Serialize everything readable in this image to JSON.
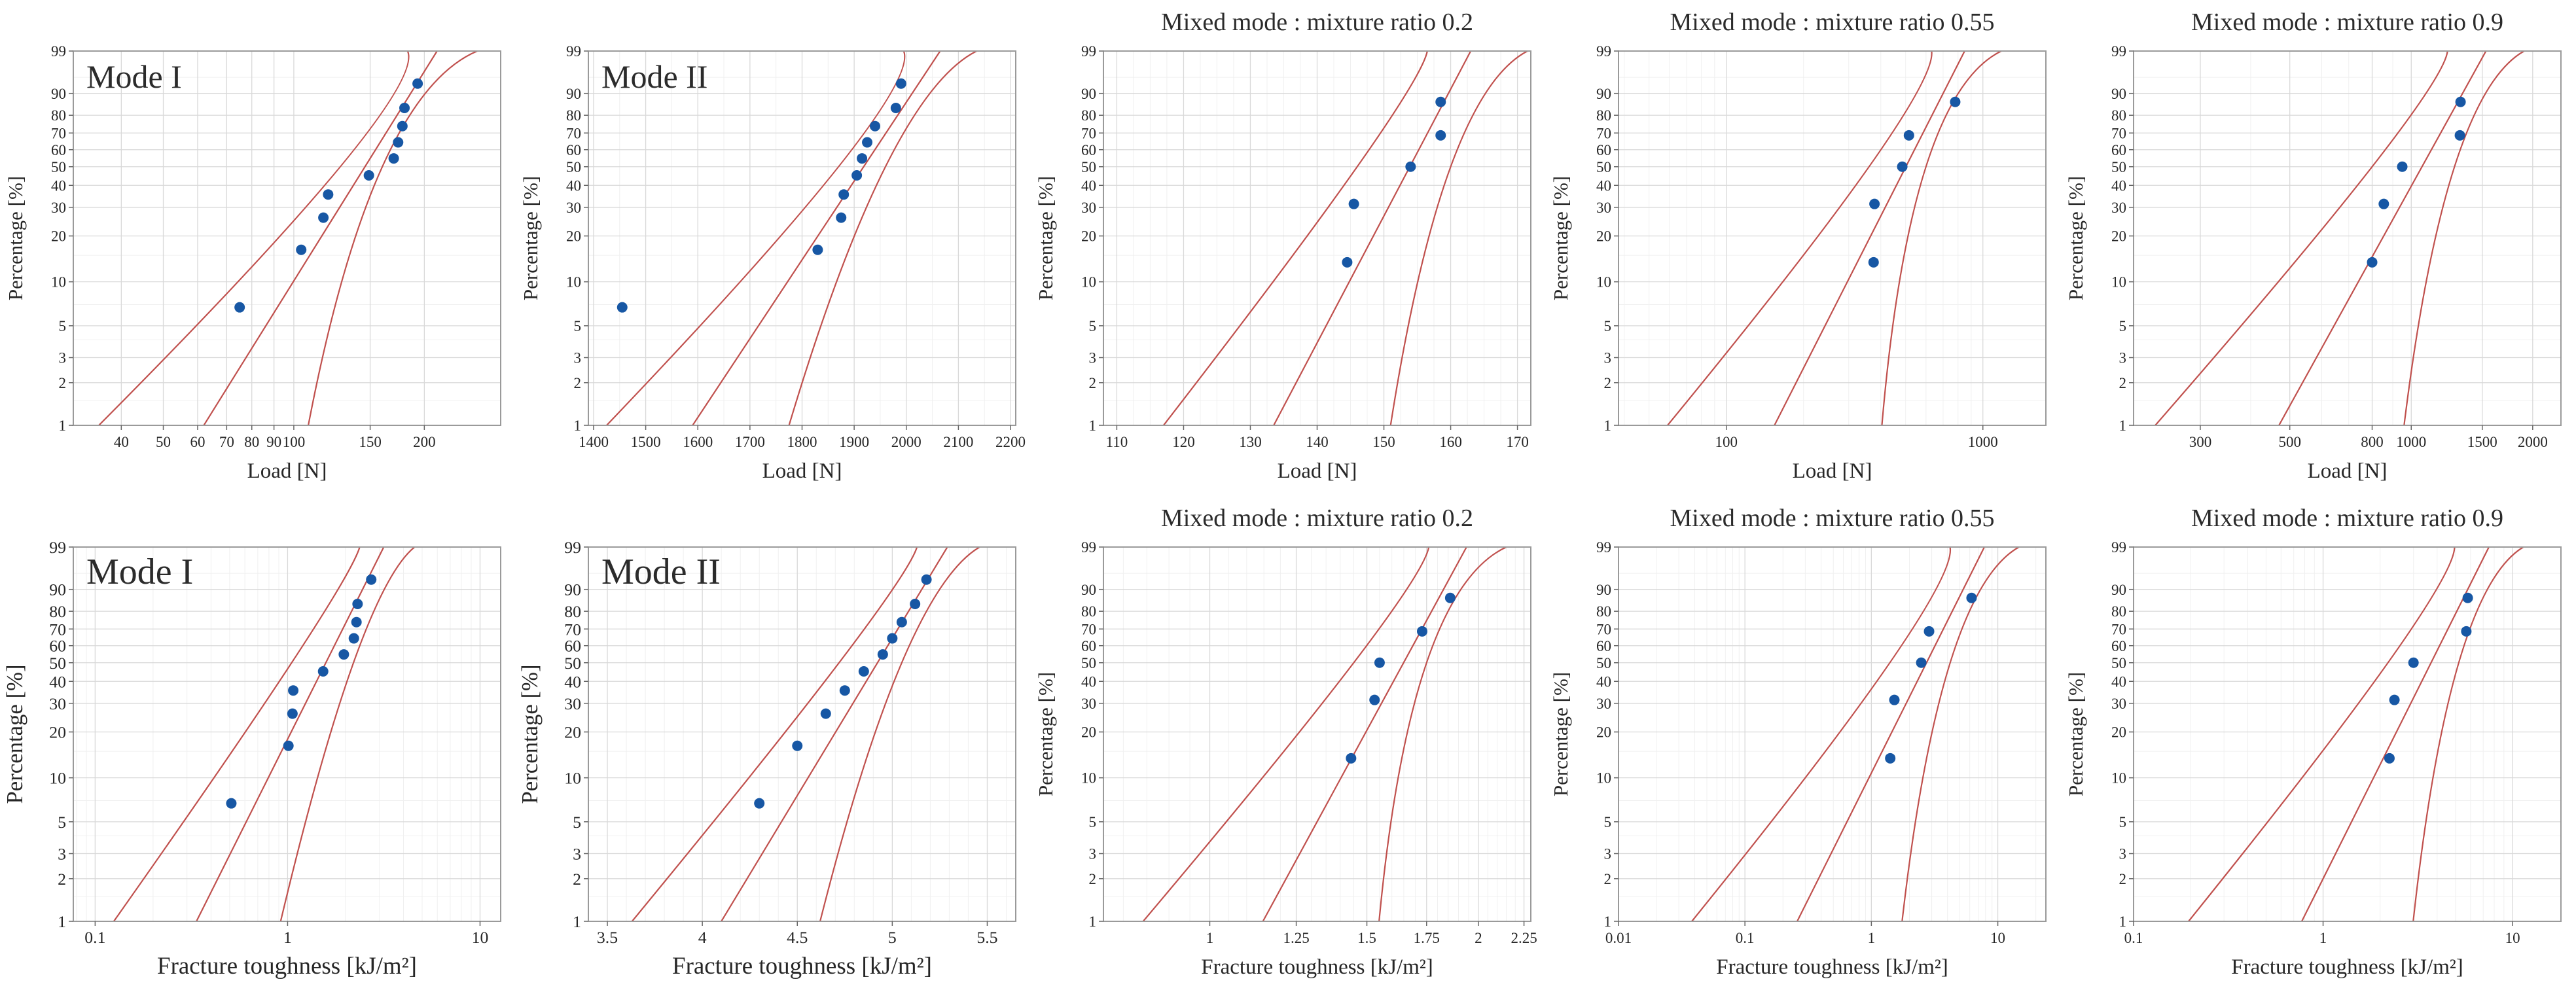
{
  "figure": {
    "background": "#ffffff",
    "rows": 2,
    "cols": 5
  },
  "colors": {
    "point": "#1757a4",
    "fit_line": "#c0504d",
    "grid_major": "#d9d9d9",
    "grid_minor": "#f0f0f0",
    "axis_box": "#9a9a9a",
    "tick": "#666666",
    "text": "#262626"
  },
  "y_axis": {
    "label": "Percentage [%]",
    "scale": "weibull",
    "range": [
      1,
      99
    ],
    "ticks": [
      1,
      2,
      3,
      5,
      10,
      20,
      30,
      40,
      50,
      60,
      70,
      80,
      90,
      99
    ],
    "minor": [
      1.5,
      4,
      7,
      15,
      95
    ]
  },
  "chart_data": [
    {
      "type": "scatter",
      "title": "Mode I",
      "title_position": "inside",
      "xlabel": "Load [N]",
      "ylabel": "Percentage [%]",
      "x_scale": "log",
      "x_range": [
        31,
        300
      ],
      "x_ticks": [
        40,
        50,
        60,
        70,
        80,
        90,
        100,
        150,
        200
      ],
      "x_tick_labels": [
        "40",
        "50",
        "60",
        "70",
        "80",
        "90",
        "100",
        "150",
        "200"
      ],
      "x_minor": "log",
      "font_scale": 1,
      "points": {
        "percent": [
          6.7,
          16.3,
          26.0,
          35.6,
          45.2,
          54.8,
          64.4,
          74.0,
          83.7,
          93.3
        ],
        "x": [
          75,
          104,
          117,
          120,
          149,
          170,
          174,
          178,
          180,
          193
        ]
      },
      "fit_line": {
        "x_at_p1": 62,
        "x_at_p99": 214
      },
      "bounds": {
        "p_anchors": [
          1,
          50,
          99
        ],
        "left_x": [
          35.5,
          128,
          183
        ],
        "right_x": [
          108,
          160,
          265
        ]
      }
    },
    {
      "type": "scatter",
      "title": "Mode II",
      "title_position": "inside",
      "xlabel": "Load [N]",
      "ylabel": "Percentage [%]",
      "x_scale": "linear",
      "x_range": [
        1390,
        2210
      ],
      "x_ticks": [
        1400,
        1500,
        1600,
        1700,
        1800,
        1900,
        2000,
        2100,
        2200
      ],
      "x_tick_labels": [
        "1400",
        "1500",
        "1600",
        "1700",
        "1800",
        "1900",
        "2000",
        "2100",
        "2200"
      ],
      "x_minor": 50,
      "font_scale": 1,
      "points": {
        "percent": [
          6.7,
          16.3,
          26.0,
          35.6,
          45.2,
          54.8,
          64.4,
          74.0,
          83.7,
          93.3
        ],
        "x": [
          1455,
          1830,
          1875,
          1880,
          1905,
          1915,
          1925,
          1940,
          1980,
          1990
        ]
      },
      "fit_line": {
        "x_at_p1": 1590,
        "x_at_p99": 2065
      },
      "bounds": {
        "p_anchors": [
          1,
          50,
          99
        ],
        "left_x": [
          1425,
          1870,
          1995
        ],
        "right_x": [
          1775,
          1960,
          2135
        ]
      }
    },
    {
      "type": "scatter",
      "title": "Mixed mode : mixture ratio 0.2",
      "title_position": "above",
      "xlabel": "Load [N]",
      "ylabel": "Percentage [%]",
      "x_scale": "linear",
      "x_range": [
        108,
        172
      ],
      "x_ticks": [
        110,
        120,
        130,
        140,
        150,
        160,
        170
      ],
      "x_tick_labels": [
        "110",
        "120",
        "130",
        "140",
        "150",
        "160",
        "170"
      ],
      "x_minor": 2.5,
      "font_scale": 1,
      "points": {
        "percent": [
          13.5,
          31.4,
          50.0,
          68.6,
          86.5
        ],
        "x": [
          144.5,
          145.5,
          154,
          158.5,
          158.5
        ]
      },
      "fit_line": {
        "x_at_p1": 133.5,
        "x_at_p99": 163
      },
      "bounds": {
        "p_anchors": [
          1,
          50,
          99
        ],
        "left_x": [
          117,
          146,
          156.5
        ],
        "right_x": [
          151,
          160,
          171.5
        ]
      }
    },
    {
      "type": "scatter",
      "title": "Mixed mode : mixture ratio 0.55",
      "title_position": "above",
      "xlabel": "Load [N]",
      "ylabel": "Percentage [%]",
      "x_scale": "log",
      "x_range": [
        38,
        1760
      ],
      "x_ticks": [
        100,
        1000
      ],
      "x_tick_labels": [
        "100",
        "1000"
      ],
      "x_minor": "log",
      "font_scale": 1,
      "points": {
        "percent": [
          13.5,
          31.4,
          50.0,
          68.6,
          86.5
        ],
        "x": [
          375,
          378,
          485,
          515,
          780
        ]
      },
      "fit_line": {
        "x_at_p1": 154,
        "x_at_p99": 849
      },
      "bounds": {
        "p_anchors": [
          1,
          50,
          99
        ],
        "left_x": [
          59,
          360,
          631
        ],
        "right_x": [
          404,
          600,
          1180
        ]
      }
    },
    {
      "type": "scatter",
      "title": "Mixed mode : mixture ratio 0.9",
      "title_position": "above",
      "xlabel": "Load [N]",
      "ylabel": "Percentage [%]",
      "x_scale": "log",
      "x_range": [
        205,
        2350
      ],
      "x_ticks": [
        300,
        500,
        800,
        1000,
        1500,
        2000
      ],
      "x_tick_labels": [
        "300",
        "500",
        "800",
        "1000",
        "1500",
        "2000"
      ],
      "x_minor": "log",
      "font_scale": 1,
      "points": {
        "percent": [
          13.5,
          31.4,
          50.0,
          68.6,
          86.5
        ],
        "x": [
          800,
          855,
          950,
          1320,
          1325
        ]
      },
      "fit_line": {
        "x_at_p1": 470,
        "x_at_p99": 1532
      },
      "bounds": {
        "p_anchors": [
          1,
          50,
          99
        ],
        "left_x": [
          232,
          800,
          1230
        ],
        "right_x": [
          960,
          1280,
          1905
        ]
      }
    },
    {
      "type": "scatter",
      "title": "Mode I",
      "title_position": "inside",
      "xlabel": "Fracture toughness [kJ/m²]",
      "ylabel": "Percentage [%]",
      "x_scale": "log",
      "x_range": [
        0.077,
        12.8
      ],
      "x_ticks": [
        0.1,
        1,
        10
      ],
      "x_tick_labels": [
        "0.1",
        "1",
        "10"
      ],
      "x_minor": "log",
      "font_scale": 1.12,
      "points": {
        "percent": [
          6.7,
          16.3,
          26.0,
          35.6,
          45.2,
          54.8,
          64.4,
          74.0,
          83.7,
          93.3
        ],
        "x": [
          0.51,
          1.01,
          1.06,
          1.07,
          1.53,
          1.96,
          2.21,
          2.28,
          2.31,
          2.72
        ]
      },
      "fit_line": {
        "x_at_p1": 0.336,
        "x_at_p99": 3.16
      },
      "bounds": {
        "p_anchors": [
          1,
          50,
          99
        ],
        "left_x": [
          0.125,
          1.05,
          2.37
        ],
        "right_x": [
          0.92,
          2.2,
          4.57
        ]
      }
    },
    {
      "type": "scatter",
      "title": "Mode II",
      "title_position": "inside",
      "xlabel": "Fracture toughness [kJ/m²]",
      "ylabel": "Percentage [%]",
      "x_scale": "linear",
      "x_range": [
        3.4,
        5.65
      ],
      "x_ticks": [
        3.5,
        4,
        4.5,
        5,
        5.5
      ],
      "x_tick_labels": [
        "3.5",
        "4",
        "4.5",
        "5",
        "5.5"
      ],
      "x_minor": 0.1,
      "font_scale": 1.12,
      "points": {
        "percent": [
          6.7,
          16.3,
          26.0,
          35.6,
          45.2,
          54.8,
          64.4,
          74.0,
          83.7,
          93.3
        ],
        "x": [
          4.3,
          4.5,
          4.65,
          4.75,
          4.85,
          4.95,
          5.0,
          5.05,
          5.12,
          5.18
        ]
      },
      "fit_line": {
        "x_at_p1": 4.1,
        "x_at_p99": 5.29
      },
      "bounds": {
        "p_anchors": [
          1,
          50,
          99
        ],
        "left_x": [
          3.63,
          4.72,
          5.13
        ],
        "right_x": [
          4.62,
          5.05,
          5.46
        ]
      }
    },
    {
      "type": "scatter",
      "title": "Mixed mode : mixture ratio 0.2",
      "title_position": "above",
      "xlabel": "Fracture toughness [kJ/m²]",
      "ylabel": "Percentage [%]",
      "x_scale": "log",
      "x_range": [
        0.76,
        2.29
      ],
      "x_ticks": [
        1,
        1.25,
        1.5,
        1.75,
        2,
        2.25
      ],
      "x_tick_labels": [
        "1",
        "1.25",
        "1.5",
        "1.75",
        "2",
        "2.25"
      ],
      "x_minor": 0.05,
      "font_scale": 1,
      "points": {
        "percent": [
          13.5,
          31.4,
          50.0,
          68.6,
          86.5
        ],
        "x": [
          1.44,
          1.53,
          1.55,
          1.73,
          1.86
        ]
      },
      "fit_line": {
        "x_at_p1": 1.147,
        "x_at_p99": 1.94
      },
      "bounds": {
        "p_anchors": [
          1,
          50,
          99
        ],
        "left_x": [
          0.842,
          1.45,
          1.76
        ],
        "right_x": [
          1.548,
          1.75,
          2.15
        ]
      }
    },
    {
      "type": "scatter",
      "title": "Mixed mode : mixture ratio 0.55",
      "title_position": "above",
      "xlabel": "Fracture toughness [kJ/m²]",
      "ylabel": "Percentage [%]",
      "x_scale": "log",
      "x_range": [
        0.01,
        24
      ],
      "x_ticks": [
        0.01,
        0.1,
        1,
        10
      ],
      "x_tick_labels": [
        "0.01",
        "0.1",
        "1",
        "10"
      ],
      "x_minor": "log",
      "font_scale": 1,
      "points": {
        "percent": [
          13.5,
          31.4,
          50.0,
          68.6,
          86.5
        ],
        "x": [
          1.41,
          1.52,
          2.48,
          2.86,
          6.2
        ]
      },
      "fit_line": {
        "x_at_p1": 0.259,
        "x_at_p99": 7.83
      },
      "bounds": {
        "p_anchors": [
          1,
          50,
          99
        ],
        "left_x": [
          0.038,
          1.4,
          4.19
        ],
        "right_x": [
          1.75,
          4.2,
          14.7
        ]
      }
    },
    {
      "type": "scatter",
      "title": "Mixed mode : mixture ratio 0.9",
      "title_position": "above",
      "xlabel": "Fracture toughness [kJ/m²]",
      "ylabel": "Percentage [%]",
      "x_scale": "log",
      "x_range": [
        0.1,
        18
      ],
      "x_ticks": [
        0.1,
        1,
        10
      ],
      "x_tick_labels": [
        "0.1",
        "1",
        "10"
      ],
      "x_minor": "log",
      "font_scale": 1,
      "points": {
        "percent": [
          13.5,
          31.4,
          50.0,
          68.6,
          86.5
        ],
        "x": [
          2.24,
          2.38,
          3.0,
          5.7,
          5.8
        ]
      },
      "fit_line": {
        "x_at_p1": 0.772,
        "x_at_p99": 7.5
      },
      "bounds": {
        "p_anchors": [
          1,
          50,
          99
        ],
        "left_x": [
          0.195,
          2.2,
          4.94
        ],
        "right_x": [
          2.99,
          5.2,
          11.4
        ]
      }
    }
  ]
}
